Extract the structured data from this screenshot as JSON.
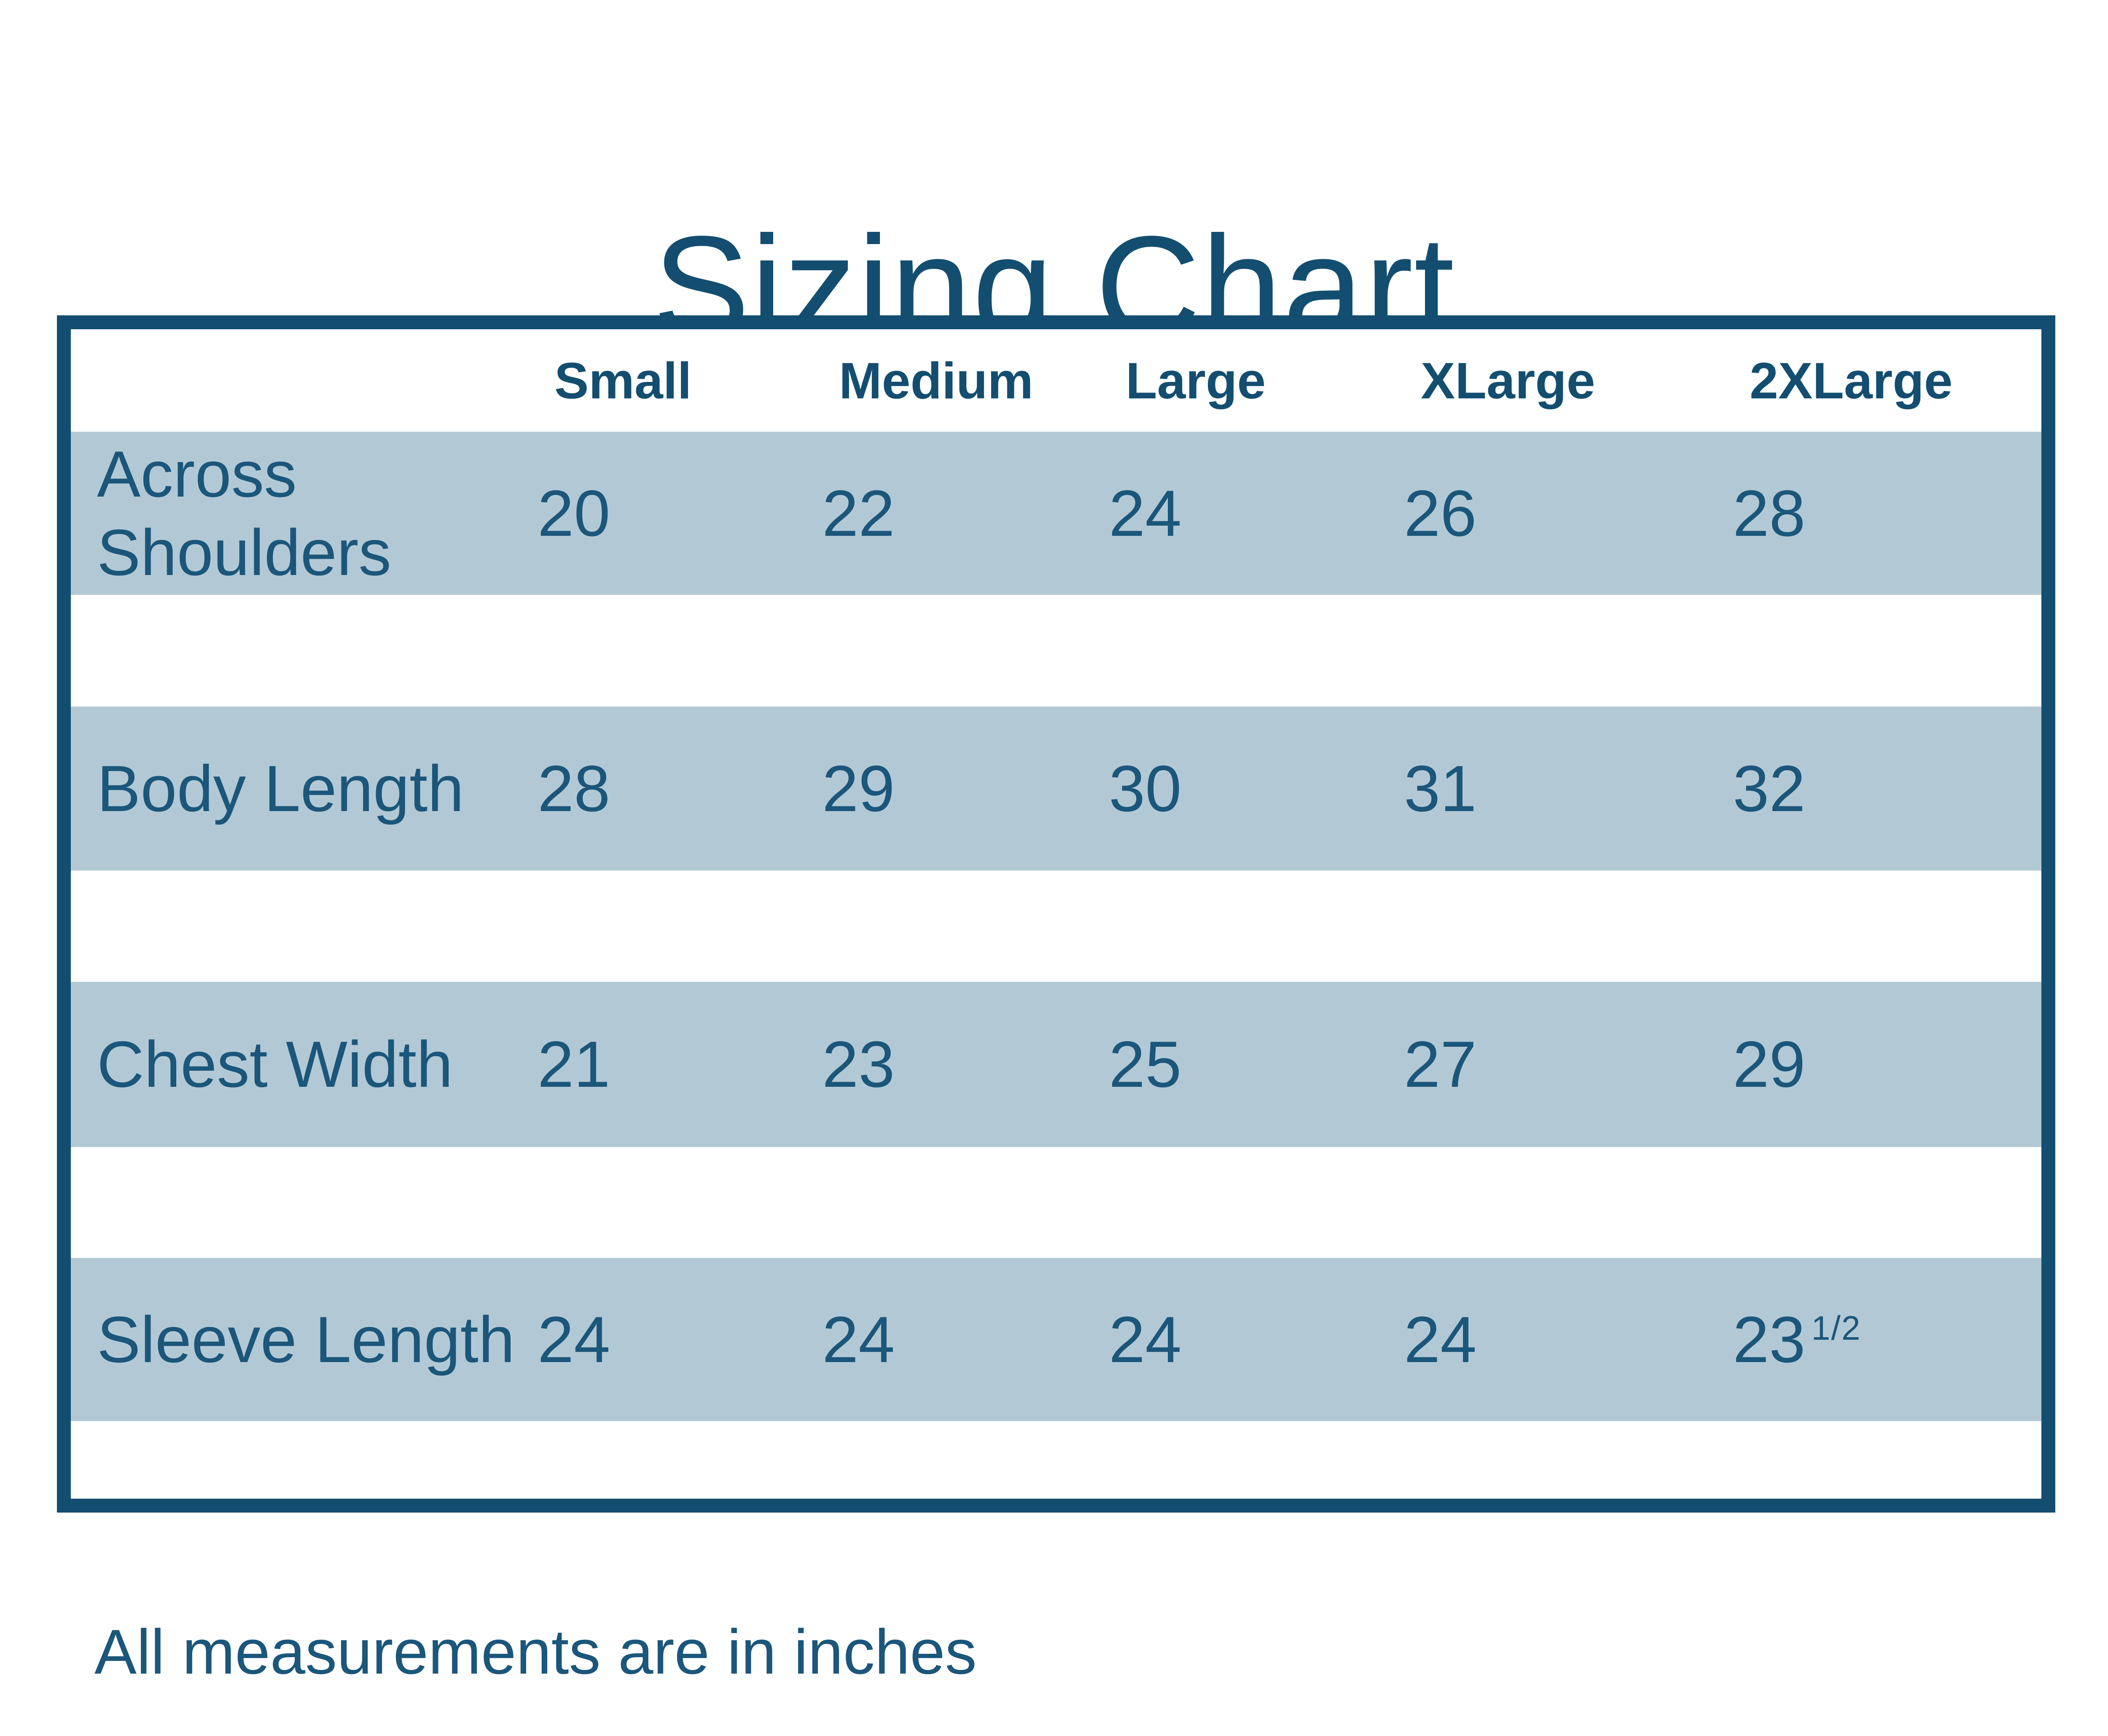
{
  "title": "Sizing Chart",
  "footer": "All measurements are in inches",
  "colors": {
    "dark_ink": "#134E70",
    "text_ink": "#1B567B",
    "row_band": "#B2C9D5",
    "background": "#FFFFFF"
  },
  "table": {
    "headers": [
      "Small",
      "Medium",
      "Large",
      "XLarge",
      "2XLarge"
    ],
    "rows": [
      {
        "label": "Across Shoulders",
        "values": [
          "20",
          "22",
          "24",
          "26",
          "28"
        ]
      },
      {
        "label": "Body Length",
        "values": [
          "28",
          "29",
          "30",
          "31",
          "32"
        ]
      },
      {
        "label": "Chest Width",
        "values": [
          "21",
          "23",
          "25",
          "27",
          "29"
        ]
      },
      {
        "label": "Sleeve Length",
        "values": [
          "24",
          "24",
          "24",
          "24",
          "23"
        ],
        "sup": "1/2"
      }
    ]
  },
  "chart_data": {
    "type": "table",
    "title": "Sizing Chart",
    "columns": [
      "Small",
      "Medium",
      "Large",
      "XLarge",
      "2XLarge"
    ],
    "rows": [
      {
        "label": "Across Shoulders",
        "values": [
          20,
          22,
          24,
          26,
          28
        ]
      },
      {
        "label": "Body Length",
        "values": [
          28,
          29,
          30,
          31,
          32
        ]
      },
      {
        "label": "Chest Width",
        "values": [
          21,
          23,
          25,
          27,
          29
        ]
      },
      {
        "label": "Sleeve Length",
        "values": [
          24,
          24,
          24,
          24,
          23.5
        ]
      }
    ],
    "note": "All measurements are in inches",
    "units": "inches"
  }
}
